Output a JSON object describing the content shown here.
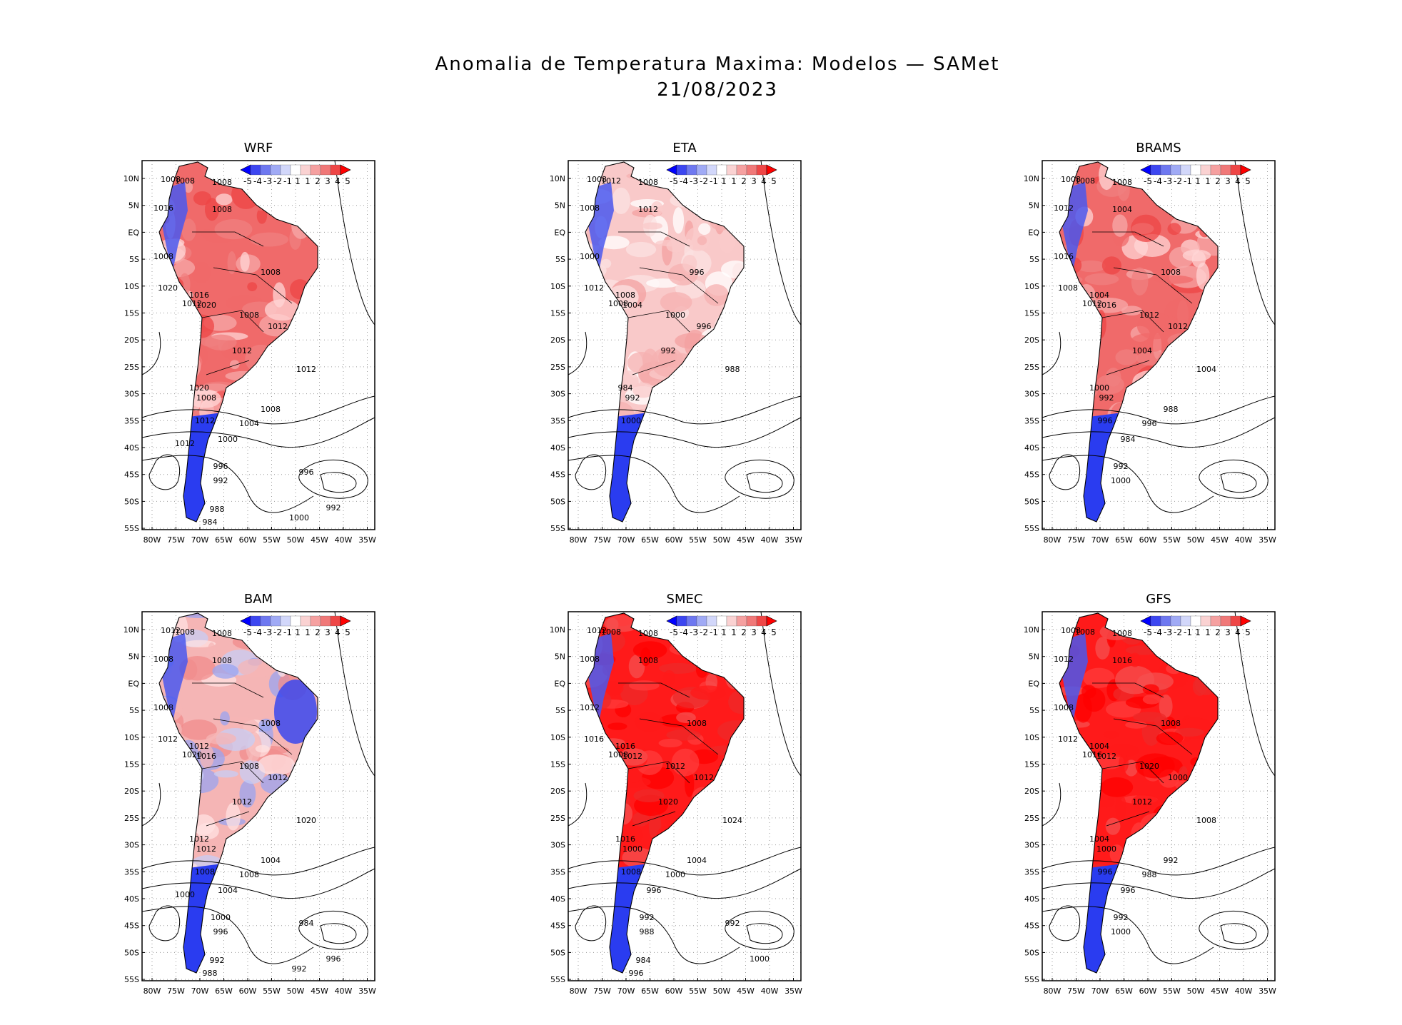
{
  "figure": {
    "title_line1": "Anomalia de Temperatura Maxima: Modelos — SAMet",
    "title_line2": "21/08/2023"
  },
  "axes": {
    "lat_labels": [
      "10N",
      "5N",
      "EQ",
      "5S",
      "10S",
      "15S",
      "20S",
      "25S",
      "30S",
      "35S",
      "40S",
      "45S",
      "50S",
      "55S"
    ],
    "lon_labels": [
      "80W",
      "75W",
      "70W",
      "65W",
      "60W",
      "55W",
      "50W",
      "45W",
      "40W",
      "35W"
    ]
  },
  "colorbar": {
    "labels": [
      "-5",
      "-4",
      "-3",
      "-2",
      "-1",
      "1",
      "1",
      "2",
      "3",
      "4",
      "5"
    ],
    "colors": [
      "#0000ff",
      "#3c46f0",
      "#6e78f0",
      "#a0aaf5",
      "#d2d7fa",
      "#ffffff",
      "#fad2d2",
      "#f5a0a0",
      "#f07878",
      "#ee4646",
      "#ff0000"
    ]
  },
  "panels": [
    {
      "name": "WRF",
      "scheme": "warm",
      "contours": [
        "1008",
        "1008",
        "1008",
        "1016",
        "1008",
        "1008",
        "1020",
        "1016",
        "1012",
        "1020",
        "1008",
        "1008",
        "1012",
        "1012",
        "1012",
        "1020",
        "1008",
        "1012",
        "1008",
        "1004",
        "1000",
        "996",
        "992",
        "988",
        "984",
        "996",
        "992",
        "1000",
        "1012"
      ]
    },
    {
      "name": "ETA",
      "scheme": "warm-light",
      "contours": [
        "1008",
        "1012",
        "1008",
        "1008",
        "1012",
        "1000",
        "1012",
        "1008",
        "1008",
        "1004",
        "1000",
        "996",
        "996",
        "992",
        "988",
        "984",
        "992",
        "1000"
      ]
    },
    {
      "name": "BRAMS",
      "scheme": "warm",
      "contours": [
        "1008",
        "1008",
        "1008",
        "1012",
        "1004",
        "1016",
        "1008",
        "1004",
        "1012",
        "1016",
        "1012",
        "1008",
        "1012",
        "1004",
        "1004",
        "1000",
        "992",
        "996",
        "988",
        "996",
        "984",
        "992",
        "1000"
      ]
    },
    {
      "name": "BAM",
      "scheme": "mixed",
      "contours": [
        "1012",
        "1008",
        "1008",
        "1008",
        "1008",
        "1008",
        "1012",
        "1012",
        "1020",
        "1016",
        "1008",
        "1008",
        "1012",
        "1012",
        "1020",
        "1012",
        "1012",
        "1008",
        "1004",
        "1008",
        "1004",
        "1000",
        "996",
        "992",
        "988",
        "984",
        "996",
        "992",
        "1000"
      ]
    },
    {
      "name": "SMEC",
      "scheme": "hot",
      "contours": [
        "1012",
        "1008",
        "1008",
        "1008",
        "1008",
        "1012",
        "1016",
        "1016",
        "1008",
        "1012",
        "1012",
        "1008",
        "1012",
        "1020",
        "1024",
        "1016",
        "1000",
        "1008",
        "1004",
        "1000",
        "996",
        "992",
        "988",
        "984",
        "996",
        "992",
        "1000"
      ]
    },
    {
      "name": "GFS",
      "scheme": "hot",
      "contours": [
        "1008",
        "1008",
        "1008",
        "1012",
        "1016",
        "1008",
        "1012",
        "1004",
        "1016",
        "1012",
        "1020",
        "1008",
        "1000",
        "1012",
        "1008",
        "1004",
        "1000",
        "996",
        "992",
        "988",
        "996",
        "992",
        "1000"
      ]
    }
  ]
}
